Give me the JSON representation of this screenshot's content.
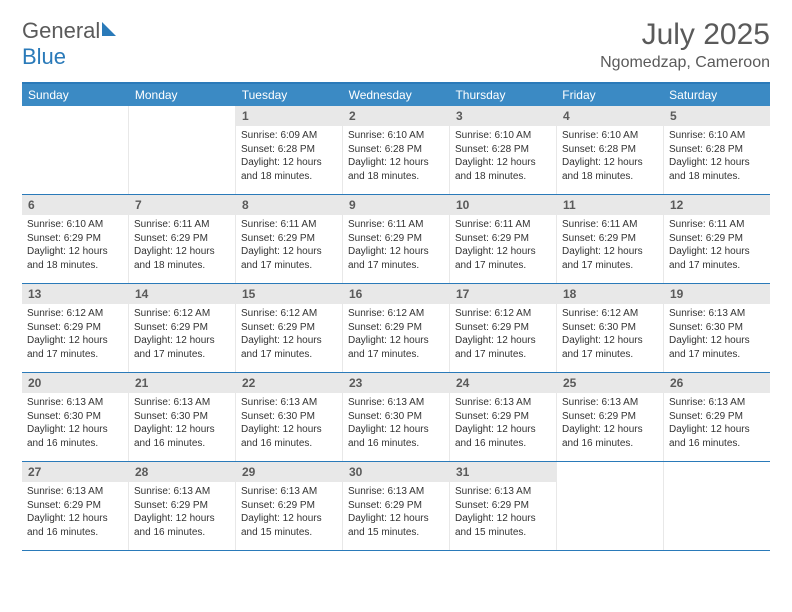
{
  "logo": {
    "word1": "General",
    "word2": "Blue",
    "text_color": "#5a5a5a",
    "accent_color": "#2a7ab9"
  },
  "title": "July 2025",
  "location": "Ngomedzap, Cameroon",
  "colors": {
    "header_bar": "#3b8ac4",
    "header_text": "#ffffff",
    "border": "#2a7ab9",
    "daynum_bg": "#e8e8e8",
    "text": "#333333"
  },
  "weekdays": [
    "Sunday",
    "Monday",
    "Tuesday",
    "Wednesday",
    "Thursday",
    "Friday",
    "Saturday"
  ],
  "weeks": [
    [
      {
        "n": "",
        "sr": "",
        "ss": "",
        "dl": ""
      },
      {
        "n": "",
        "sr": "",
        "ss": "",
        "dl": ""
      },
      {
        "n": "1",
        "sr": "Sunrise: 6:09 AM",
        "ss": "Sunset: 6:28 PM",
        "dl": "Daylight: 12 hours and 18 minutes."
      },
      {
        "n": "2",
        "sr": "Sunrise: 6:10 AM",
        "ss": "Sunset: 6:28 PM",
        "dl": "Daylight: 12 hours and 18 minutes."
      },
      {
        "n": "3",
        "sr": "Sunrise: 6:10 AM",
        "ss": "Sunset: 6:28 PM",
        "dl": "Daylight: 12 hours and 18 minutes."
      },
      {
        "n": "4",
        "sr": "Sunrise: 6:10 AM",
        "ss": "Sunset: 6:28 PM",
        "dl": "Daylight: 12 hours and 18 minutes."
      },
      {
        "n": "5",
        "sr": "Sunrise: 6:10 AM",
        "ss": "Sunset: 6:28 PM",
        "dl": "Daylight: 12 hours and 18 minutes."
      }
    ],
    [
      {
        "n": "6",
        "sr": "Sunrise: 6:10 AM",
        "ss": "Sunset: 6:29 PM",
        "dl": "Daylight: 12 hours and 18 minutes."
      },
      {
        "n": "7",
        "sr": "Sunrise: 6:11 AM",
        "ss": "Sunset: 6:29 PM",
        "dl": "Daylight: 12 hours and 18 minutes."
      },
      {
        "n": "8",
        "sr": "Sunrise: 6:11 AM",
        "ss": "Sunset: 6:29 PM",
        "dl": "Daylight: 12 hours and 17 minutes."
      },
      {
        "n": "9",
        "sr": "Sunrise: 6:11 AM",
        "ss": "Sunset: 6:29 PM",
        "dl": "Daylight: 12 hours and 17 minutes."
      },
      {
        "n": "10",
        "sr": "Sunrise: 6:11 AM",
        "ss": "Sunset: 6:29 PM",
        "dl": "Daylight: 12 hours and 17 minutes."
      },
      {
        "n": "11",
        "sr": "Sunrise: 6:11 AM",
        "ss": "Sunset: 6:29 PM",
        "dl": "Daylight: 12 hours and 17 minutes."
      },
      {
        "n": "12",
        "sr": "Sunrise: 6:11 AM",
        "ss": "Sunset: 6:29 PM",
        "dl": "Daylight: 12 hours and 17 minutes."
      }
    ],
    [
      {
        "n": "13",
        "sr": "Sunrise: 6:12 AM",
        "ss": "Sunset: 6:29 PM",
        "dl": "Daylight: 12 hours and 17 minutes."
      },
      {
        "n": "14",
        "sr": "Sunrise: 6:12 AM",
        "ss": "Sunset: 6:29 PM",
        "dl": "Daylight: 12 hours and 17 minutes."
      },
      {
        "n": "15",
        "sr": "Sunrise: 6:12 AM",
        "ss": "Sunset: 6:29 PM",
        "dl": "Daylight: 12 hours and 17 minutes."
      },
      {
        "n": "16",
        "sr": "Sunrise: 6:12 AM",
        "ss": "Sunset: 6:29 PM",
        "dl": "Daylight: 12 hours and 17 minutes."
      },
      {
        "n": "17",
        "sr": "Sunrise: 6:12 AM",
        "ss": "Sunset: 6:29 PM",
        "dl": "Daylight: 12 hours and 17 minutes."
      },
      {
        "n": "18",
        "sr": "Sunrise: 6:12 AM",
        "ss": "Sunset: 6:30 PM",
        "dl": "Daylight: 12 hours and 17 minutes."
      },
      {
        "n": "19",
        "sr": "Sunrise: 6:13 AM",
        "ss": "Sunset: 6:30 PM",
        "dl": "Daylight: 12 hours and 17 minutes."
      }
    ],
    [
      {
        "n": "20",
        "sr": "Sunrise: 6:13 AM",
        "ss": "Sunset: 6:30 PM",
        "dl": "Daylight: 12 hours and 16 minutes."
      },
      {
        "n": "21",
        "sr": "Sunrise: 6:13 AM",
        "ss": "Sunset: 6:30 PM",
        "dl": "Daylight: 12 hours and 16 minutes."
      },
      {
        "n": "22",
        "sr": "Sunrise: 6:13 AM",
        "ss": "Sunset: 6:30 PM",
        "dl": "Daylight: 12 hours and 16 minutes."
      },
      {
        "n": "23",
        "sr": "Sunrise: 6:13 AM",
        "ss": "Sunset: 6:30 PM",
        "dl": "Daylight: 12 hours and 16 minutes."
      },
      {
        "n": "24",
        "sr": "Sunrise: 6:13 AM",
        "ss": "Sunset: 6:29 PM",
        "dl": "Daylight: 12 hours and 16 minutes."
      },
      {
        "n": "25",
        "sr": "Sunrise: 6:13 AM",
        "ss": "Sunset: 6:29 PM",
        "dl": "Daylight: 12 hours and 16 minutes."
      },
      {
        "n": "26",
        "sr": "Sunrise: 6:13 AM",
        "ss": "Sunset: 6:29 PM",
        "dl": "Daylight: 12 hours and 16 minutes."
      }
    ],
    [
      {
        "n": "27",
        "sr": "Sunrise: 6:13 AM",
        "ss": "Sunset: 6:29 PM",
        "dl": "Daylight: 12 hours and 16 minutes."
      },
      {
        "n": "28",
        "sr": "Sunrise: 6:13 AM",
        "ss": "Sunset: 6:29 PM",
        "dl": "Daylight: 12 hours and 16 minutes."
      },
      {
        "n": "29",
        "sr": "Sunrise: 6:13 AM",
        "ss": "Sunset: 6:29 PM",
        "dl": "Daylight: 12 hours and 15 minutes."
      },
      {
        "n": "30",
        "sr": "Sunrise: 6:13 AM",
        "ss": "Sunset: 6:29 PM",
        "dl": "Daylight: 12 hours and 15 minutes."
      },
      {
        "n": "31",
        "sr": "Sunrise: 6:13 AM",
        "ss": "Sunset: 6:29 PM",
        "dl": "Daylight: 12 hours and 15 minutes."
      },
      {
        "n": "",
        "sr": "",
        "ss": "",
        "dl": ""
      },
      {
        "n": "",
        "sr": "",
        "ss": "",
        "dl": ""
      }
    ]
  ]
}
